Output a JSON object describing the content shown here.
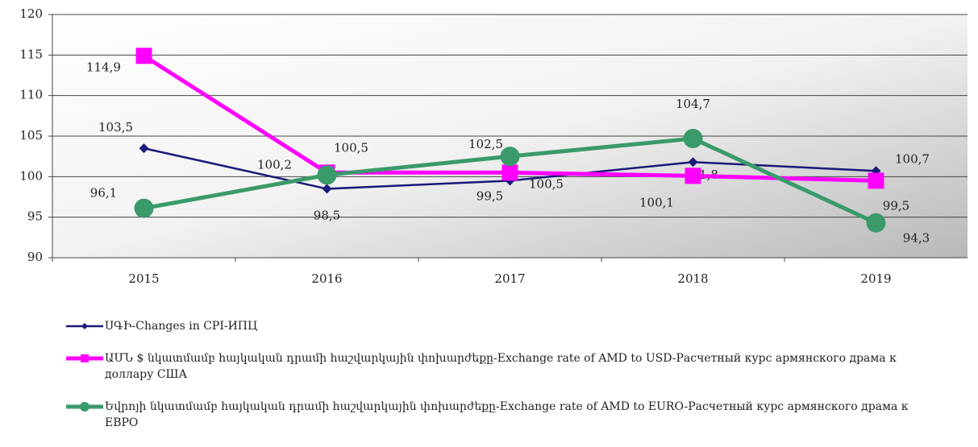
{
  "chart_data": {
    "type": "line",
    "categories": [
      "2015",
      "2016",
      "2017",
      "2018",
      "2019"
    ],
    "ylim": [
      90,
      120
    ],
    "yticks": [
      90,
      95,
      100,
      105,
      110,
      115,
      120
    ],
    "grid": true,
    "series": [
      {
        "name": "ՍԳԻ-Changes in CPI-ИПЦ",
        "color": "#1a1a7a",
        "marker": "diamond",
        "values": [
          103.5,
          98.5,
          99.5,
          101.8,
          100.7
        ],
        "value_labels": [
          "103,5",
          "98,5",
          "99,5",
          "101,8",
          "100,7"
        ]
      },
      {
        "name": "ԱՄՆ $ նկատմամբ հայկական դրամի հաշվարկային փոխարժեքը-Exchange rate of AMD to USD-Расчетный курс армянского драма к доллару США",
        "color": "#ff00ff",
        "marker": "square",
        "values": [
          114.9,
          100.5,
          100.5,
          100.1,
          99.5
        ],
        "value_labels": [
          "114,9",
          "100,5",
          "100,5",
          "100,1",
          "99,5"
        ]
      },
      {
        "name": "Եվրոյի նկատմամբ հայկական դրամի հաշվարկային փոխարժեքը-Exchange rate of AMD to EURO-Расчетный курс армянского драма к ЕВРО",
        "color": "#3a9a6a",
        "marker": "circle",
        "values": [
          96.1,
          100.2,
          102.5,
          104.7,
          94.3
        ],
        "value_labels": [
          "96,1",
          "100,2",
          "102,5",
          "104,7",
          "94,3"
        ]
      }
    ]
  }
}
